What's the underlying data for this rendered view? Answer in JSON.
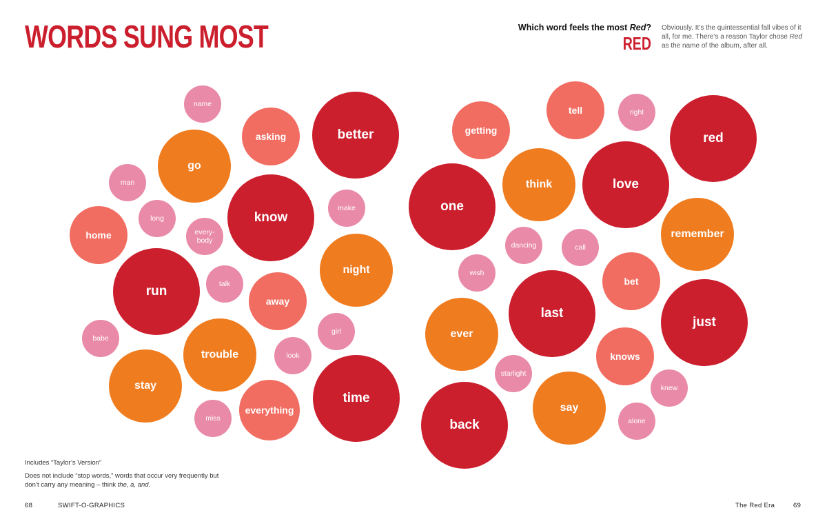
{
  "header": {
    "title": "WORDS SUNG MOST",
    "question_prefix": "Which word feels the most ",
    "question_italic": "Red",
    "question_suffix": "?",
    "answer": "RED",
    "blurb_1": "Obviously. It’s the quintessential fall vibes of it all, for me. There’s a reason Taylor chose ",
    "blurb_italic": "Red",
    "blurb_2": " as the name of the album, after all."
  },
  "palette": {
    "crimson": "#cc1f2e",
    "orange": "#f07c20",
    "salmon": "#f26d61",
    "pink": "#e98aa8",
    "title": "#cc1f2e"
  },
  "words": [
    "name",
    "asking",
    "better",
    "go",
    "man",
    "long",
    "every-\nbody",
    "know",
    "make",
    "home",
    "run",
    "talk",
    "away",
    "night",
    "babe",
    "trouble",
    "look",
    "girl",
    "stay",
    "miss",
    "everything",
    "time",
    "getting",
    "tell",
    "right",
    "red",
    "think",
    "love",
    "one",
    "remember",
    "dancing",
    "call",
    "wish",
    "bet",
    "last",
    "just",
    "ever",
    "knows",
    "starlight",
    "knew",
    "say",
    "back",
    "alone"
  ],
  "notes": {
    "line1": "Includes “Taylor’s Version”",
    "line2_main": "Does not include “stop words,” words that occur very frequently but don’t carry any meaning – think ",
    "line2_italic": "the, a, and.",
    "line2_end": ""
  },
  "footer": {
    "page_left": "68",
    "book_title": "SWIFT-O-GRAPHICS",
    "section": "The Red Era",
    "page_right": "69"
  }
}
